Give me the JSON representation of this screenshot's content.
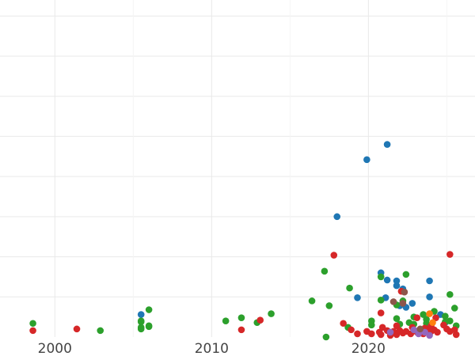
{
  "chart_data": {
    "type": "scatter",
    "title": "",
    "xlabel": "",
    "ylabel": "",
    "xlim": [
      1996.5,
      2026.8
    ],
    "ylim": [
      0,
      42
    ],
    "x_ticks": [
      {
        "value": 2000,
        "label": "2000"
      },
      {
        "value": 2010,
        "label": "2010"
      },
      {
        "value": 2020,
        "label": "2020"
      }
    ],
    "x_minor": [
      2005,
      2015,
      2025
    ],
    "y_grid": [
      5,
      10,
      15,
      20,
      25,
      30,
      35,
      40
    ],
    "grid": true,
    "legend": "none",
    "series": [
      {
        "color": "#1f77b4",
        "points": [
          [
            2005.5,
            2.8
          ],
          [
            2018.0,
            15.0
          ],
          [
            2019.9,
            22.1
          ],
          [
            2021.2,
            24.0
          ],
          [
            2019.3,
            4.9
          ],
          [
            2020.8,
            8.0
          ],
          [
            2021.2,
            7.1
          ],
          [
            2021.8,
            7.0
          ],
          [
            2021.8,
            6.4
          ],
          [
            2022.2,
            6.0
          ],
          [
            2021.1,
            4.9
          ],
          [
            2022.8,
            4.2
          ],
          [
            2023.9,
            7.0
          ],
          [
            2023.9,
            5.0
          ],
          [
            2024.6,
            2.8
          ],
          [
            2022.4,
            3.7
          ],
          [
            2022.0,
            3.9
          ],
          [
            2024.9,
            1.8
          ]
        ]
      },
      {
        "color": "#2ca02c",
        "points": [
          [
            1998.6,
            1.7
          ],
          [
            2002.9,
            0.8
          ],
          [
            2005.5,
            1.9
          ],
          [
            2005.5,
            2.0
          ],
          [
            2005.5,
            1.2
          ],
          [
            2005.5,
            1.0
          ],
          [
            2006.0,
            3.4
          ],
          [
            2006.0,
            1.4
          ],
          [
            2006.0,
            1.3
          ],
          [
            2010.9,
            2.0
          ],
          [
            2011.9,
            2.4
          ],
          [
            2012.9,
            1.8
          ],
          [
            2013.8,
            2.9
          ],
          [
            2016.4,
            4.5
          ],
          [
            2017.5,
            3.9
          ],
          [
            2017.2,
            8.2
          ],
          [
            2017.3,
            0.0
          ],
          [
            2018.8,
            6.1
          ],
          [
            2018.7,
            1.2
          ],
          [
            2020.2,
            1.5
          ],
          [
            2020.2,
            2.0
          ],
          [
            2020.8,
            4.6
          ],
          [
            2020.8,
            7.5
          ],
          [
            2022.2,
            4.5
          ],
          [
            2022.4,
            7.8
          ],
          [
            2021.8,
            4.0
          ],
          [
            2021.8,
            2.3
          ],
          [
            2022.0,
            1.6
          ],
          [
            2022.9,
            1.6
          ],
          [
            2022.9,
            2.5
          ],
          [
            2023.5,
            2.8
          ],
          [
            2023.7,
            2.2
          ],
          [
            2023.7,
            1.7
          ],
          [
            2024.2,
            3.2
          ],
          [
            2024.9,
            2.6
          ],
          [
            2024.9,
            1.9
          ],
          [
            2025.2,
            5.3
          ],
          [
            2025.2,
            2.0
          ],
          [
            2025.5,
            3.6
          ],
          [
            2025.6,
            1.4
          ],
          [
            2022.6,
            1.8
          ]
        ]
      },
      {
        "color": "#d62728",
        "points": [
          [
            1998.6,
            0.8
          ],
          [
            2001.4,
            1.0
          ],
          [
            2011.9,
            0.9
          ],
          [
            2013.1,
            2.1
          ],
          [
            2017.8,
            10.2
          ],
          [
            2018.4,
            1.7
          ],
          [
            2018.9,
            0.9
          ],
          [
            2019.3,
            0.4
          ],
          [
            2019.9,
            0.7
          ],
          [
            2020.2,
            0.4
          ],
          [
            2020.7,
            0.6
          ],
          [
            2020.8,
            0.3
          ],
          [
            2020.9,
            1.2
          ],
          [
            2021.2,
            0.8
          ],
          [
            2021.4,
            0.2
          ],
          [
            2021.5,
            0.5
          ],
          [
            2021.6,
            0.7
          ],
          [
            2021.8,
            1.4
          ],
          [
            2021.8,
            0.3
          ],
          [
            2022.0,
            0.8
          ],
          [
            2022.2,
            0.5
          ],
          [
            2022.4,
            0.7
          ],
          [
            2022.7,
            0.4
          ],
          [
            2022.8,
            1.2
          ],
          [
            2023.1,
            0.6
          ],
          [
            2023.3,
            0.8
          ],
          [
            2023.5,
            0.4
          ],
          [
            2023.8,
            1.0
          ],
          [
            2024.0,
            0.7
          ],
          [
            2024.2,
            0.9
          ],
          [
            2024.4,
            0.6
          ],
          [
            2024.3,
            2.4
          ],
          [
            2025.0,
            1.0
          ],
          [
            2025.2,
            0.7
          ],
          [
            2025.5,
            0.9
          ],
          [
            2025.6,
            0.3
          ],
          [
            2025.2,
            10.3
          ],
          [
            2020.8,
            3.0
          ],
          [
            2023.1,
            2.4
          ],
          [
            2022.1,
            5.7
          ],
          [
            2024.0,
            1.4
          ],
          [
            2023.6,
            1.1
          ],
          [
            2024.8,
            1.5
          ]
        ]
      },
      {
        "color": "#9467bd",
        "points": [
          [
            2023.2,
            0.4
          ],
          [
            2023.9,
            0.2
          ],
          [
            2021.4,
            0.6
          ],
          [
            2022.9,
            0.9
          ],
          [
            2023.6,
            0.6
          ]
        ]
      },
      {
        "color": "#ff7f0e",
        "points": [
          [
            2023.9,
            2.9
          ],
          [
            2024.1,
            1.8
          ]
        ]
      },
      {
        "color": "#8c564b",
        "points": [
          [
            2021.6,
            4.4
          ],
          [
            2022.3,
            5.6
          ],
          [
            2023.3,
            1.0
          ],
          [
            2022.2,
            4.2
          ]
        ]
      }
    ]
  }
}
